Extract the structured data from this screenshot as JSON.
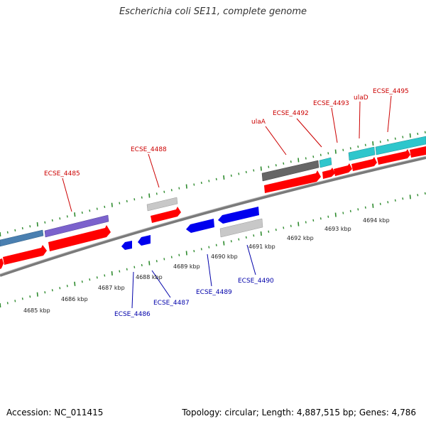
{
  "title": "Escherichia coli SE11, complete genome",
  "footer": {
    "accession": "Accession: NC_011415",
    "stats": "Topology: circular; Length: 4,887,515 bp; Genes: 4,786"
  },
  "colors": {
    "forward_label": "#cc0000",
    "reverse_label": "#0000aa",
    "backbone": "#888888",
    "tick": "#2e8b2e",
    "cds_red": "#ff0000",
    "cds_blue": "#0000ee",
    "gray": "#c0c0c0",
    "dark_gray": "#666666",
    "cyan": "#2ec6cc",
    "purple": "#7b62cc",
    "steel_blue": "#4a7fb0"
  },
  "scale_labels": [
    "4685 kbp",
    "4686 kbp",
    "4687 kbp",
    "4688 kbp",
    "4689 kbp",
    "4690 kbp",
    "4691 kbp",
    "4692 kbp",
    "4693 kbp",
    "4694 kbp"
  ],
  "forward_genes": [
    "ECSE_4485",
    "ECSE_4488",
    "ulaA",
    "ECSE_4492",
    "ECSE_4493",
    "ulaD",
    "ECSE_4495"
  ],
  "reverse_genes": [
    "ECSE_4486",
    "ECSE_4487",
    "ECSE_4489",
    "ECSE_4490"
  ]
}
